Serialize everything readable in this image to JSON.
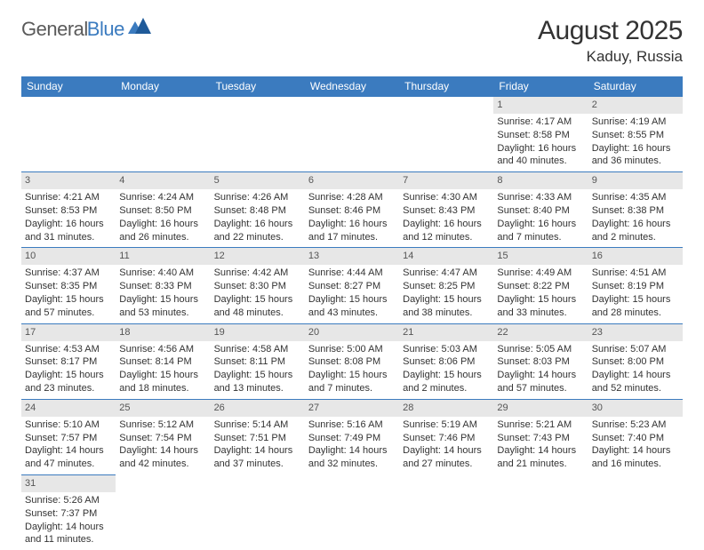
{
  "logo": {
    "part1": "General",
    "part2": "Blue"
  },
  "title": "August 2025",
  "location": "Kaduy, Russia",
  "weekdays": [
    "Sunday",
    "Monday",
    "Tuesday",
    "Wednesday",
    "Thursday",
    "Friday",
    "Saturday"
  ],
  "colors": {
    "header_bg": "#3b7bbf",
    "header_text": "#ffffff",
    "daynum_bg": "#e7e7e7",
    "body_text": "#333333",
    "border": "#3b7bbf"
  },
  "weeks": [
    [
      {
        "day": "",
        "sunrise": "",
        "sunset": "",
        "daylight": ""
      },
      {
        "day": "",
        "sunrise": "",
        "sunset": "",
        "daylight": ""
      },
      {
        "day": "",
        "sunrise": "",
        "sunset": "",
        "daylight": ""
      },
      {
        "day": "",
        "sunrise": "",
        "sunset": "",
        "daylight": ""
      },
      {
        "day": "",
        "sunrise": "",
        "sunset": "",
        "daylight": ""
      },
      {
        "day": "1",
        "sunrise": "Sunrise: 4:17 AM",
        "sunset": "Sunset: 8:58 PM",
        "daylight": "Daylight: 16 hours and 40 minutes."
      },
      {
        "day": "2",
        "sunrise": "Sunrise: 4:19 AM",
        "sunset": "Sunset: 8:55 PM",
        "daylight": "Daylight: 16 hours and 36 minutes."
      }
    ],
    [
      {
        "day": "3",
        "sunrise": "Sunrise: 4:21 AM",
        "sunset": "Sunset: 8:53 PM",
        "daylight": "Daylight: 16 hours and 31 minutes."
      },
      {
        "day": "4",
        "sunrise": "Sunrise: 4:24 AM",
        "sunset": "Sunset: 8:50 PM",
        "daylight": "Daylight: 16 hours and 26 minutes."
      },
      {
        "day": "5",
        "sunrise": "Sunrise: 4:26 AM",
        "sunset": "Sunset: 8:48 PM",
        "daylight": "Daylight: 16 hours and 22 minutes."
      },
      {
        "day": "6",
        "sunrise": "Sunrise: 4:28 AM",
        "sunset": "Sunset: 8:46 PM",
        "daylight": "Daylight: 16 hours and 17 minutes."
      },
      {
        "day": "7",
        "sunrise": "Sunrise: 4:30 AM",
        "sunset": "Sunset: 8:43 PM",
        "daylight": "Daylight: 16 hours and 12 minutes."
      },
      {
        "day": "8",
        "sunrise": "Sunrise: 4:33 AM",
        "sunset": "Sunset: 8:40 PM",
        "daylight": "Daylight: 16 hours and 7 minutes."
      },
      {
        "day": "9",
        "sunrise": "Sunrise: 4:35 AM",
        "sunset": "Sunset: 8:38 PM",
        "daylight": "Daylight: 16 hours and 2 minutes."
      }
    ],
    [
      {
        "day": "10",
        "sunrise": "Sunrise: 4:37 AM",
        "sunset": "Sunset: 8:35 PM",
        "daylight": "Daylight: 15 hours and 57 minutes."
      },
      {
        "day": "11",
        "sunrise": "Sunrise: 4:40 AM",
        "sunset": "Sunset: 8:33 PM",
        "daylight": "Daylight: 15 hours and 53 minutes."
      },
      {
        "day": "12",
        "sunrise": "Sunrise: 4:42 AM",
        "sunset": "Sunset: 8:30 PM",
        "daylight": "Daylight: 15 hours and 48 minutes."
      },
      {
        "day": "13",
        "sunrise": "Sunrise: 4:44 AM",
        "sunset": "Sunset: 8:27 PM",
        "daylight": "Daylight: 15 hours and 43 minutes."
      },
      {
        "day": "14",
        "sunrise": "Sunrise: 4:47 AM",
        "sunset": "Sunset: 8:25 PM",
        "daylight": "Daylight: 15 hours and 38 minutes."
      },
      {
        "day": "15",
        "sunrise": "Sunrise: 4:49 AM",
        "sunset": "Sunset: 8:22 PM",
        "daylight": "Daylight: 15 hours and 33 minutes."
      },
      {
        "day": "16",
        "sunrise": "Sunrise: 4:51 AM",
        "sunset": "Sunset: 8:19 PM",
        "daylight": "Daylight: 15 hours and 28 minutes."
      }
    ],
    [
      {
        "day": "17",
        "sunrise": "Sunrise: 4:53 AM",
        "sunset": "Sunset: 8:17 PM",
        "daylight": "Daylight: 15 hours and 23 minutes."
      },
      {
        "day": "18",
        "sunrise": "Sunrise: 4:56 AM",
        "sunset": "Sunset: 8:14 PM",
        "daylight": "Daylight: 15 hours and 18 minutes."
      },
      {
        "day": "19",
        "sunrise": "Sunrise: 4:58 AM",
        "sunset": "Sunset: 8:11 PM",
        "daylight": "Daylight: 15 hours and 13 minutes."
      },
      {
        "day": "20",
        "sunrise": "Sunrise: 5:00 AM",
        "sunset": "Sunset: 8:08 PM",
        "daylight": "Daylight: 15 hours and 7 minutes."
      },
      {
        "day": "21",
        "sunrise": "Sunrise: 5:03 AM",
        "sunset": "Sunset: 8:06 PM",
        "daylight": "Daylight: 15 hours and 2 minutes."
      },
      {
        "day": "22",
        "sunrise": "Sunrise: 5:05 AM",
        "sunset": "Sunset: 8:03 PM",
        "daylight": "Daylight: 14 hours and 57 minutes."
      },
      {
        "day": "23",
        "sunrise": "Sunrise: 5:07 AM",
        "sunset": "Sunset: 8:00 PM",
        "daylight": "Daylight: 14 hours and 52 minutes."
      }
    ],
    [
      {
        "day": "24",
        "sunrise": "Sunrise: 5:10 AM",
        "sunset": "Sunset: 7:57 PM",
        "daylight": "Daylight: 14 hours and 47 minutes."
      },
      {
        "day": "25",
        "sunrise": "Sunrise: 5:12 AM",
        "sunset": "Sunset: 7:54 PM",
        "daylight": "Daylight: 14 hours and 42 minutes."
      },
      {
        "day": "26",
        "sunrise": "Sunrise: 5:14 AM",
        "sunset": "Sunset: 7:51 PM",
        "daylight": "Daylight: 14 hours and 37 minutes."
      },
      {
        "day": "27",
        "sunrise": "Sunrise: 5:16 AM",
        "sunset": "Sunset: 7:49 PM",
        "daylight": "Daylight: 14 hours and 32 minutes."
      },
      {
        "day": "28",
        "sunrise": "Sunrise: 5:19 AM",
        "sunset": "Sunset: 7:46 PM",
        "daylight": "Daylight: 14 hours and 27 minutes."
      },
      {
        "day": "29",
        "sunrise": "Sunrise: 5:21 AM",
        "sunset": "Sunset: 7:43 PM",
        "daylight": "Daylight: 14 hours and 21 minutes."
      },
      {
        "day": "30",
        "sunrise": "Sunrise: 5:23 AM",
        "sunset": "Sunset: 7:40 PM",
        "daylight": "Daylight: 14 hours and 16 minutes."
      }
    ],
    [
      {
        "day": "31",
        "sunrise": "Sunrise: 5:26 AM",
        "sunset": "Sunset: 7:37 PM",
        "daylight": "Daylight: 14 hours and 11 minutes."
      },
      {
        "day": "",
        "sunrise": "",
        "sunset": "",
        "daylight": ""
      },
      {
        "day": "",
        "sunrise": "",
        "sunset": "",
        "daylight": ""
      },
      {
        "day": "",
        "sunrise": "",
        "sunset": "",
        "daylight": ""
      },
      {
        "day": "",
        "sunrise": "",
        "sunset": "",
        "daylight": ""
      },
      {
        "day": "",
        "sunrise": "",
        "sunset": "",
        "daylight": ""
      },
      {
        "day": "",
        "sunrise": "",
        "sunset": "",
        "daylight": ""
      }
    ]
  ]
}
